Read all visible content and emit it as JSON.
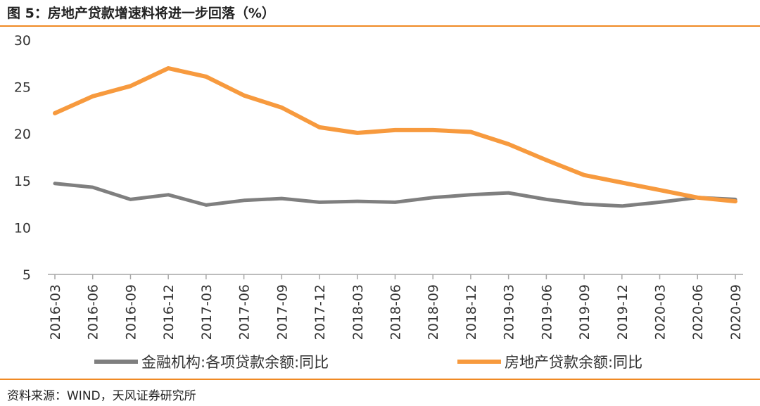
{
  "title": "图 5：房地产贷款增速料将进一步回落（%）",
  "source": "资料来源：WIND，天风证券研究所",
  "chart_data": {
    "type": "line",
    "x": [
      "2016-03",
      "2016-06",
      "2016-09",
      "2016-12",
      "2017-03",
      "2017-06",
      "2017-09",
      "2017-12",
      "2018-03",
      "2018-06",
      "2018-09",
      "2018-12",
      "2019-03",
      "2019-06",
      "2019-09",
      "2019-12",
      "2020-03",
      "2020-06",
      "2020-09"
    ],
    "series": [
      {
        "name": "金融机构:各项贷款余额:同比",
        "color": "#7f7f7f",
        "values": [
          14.7,
          14.3,
          13.0,
          13.5,
          12.4,
          12.9,
          13.1,
          12.7,
          12.8,
          12.7,
          13.2,
          13.5,
          13.7,
          13.0,
          12.5,
          12.3,
          12.7,
          13.2,
          13.0
        ]
      },
      {
        "name": "房地产贷款余额:同比",
        "color": "#f79a3e",
        "values": [
          22.2,
          24.0,
          25.1,
          27.0,
          26.1,
          24.1,
          22.8,
          20.7,
          20.1,
          20.4,
          20.4,
          20.2,
          18.9,
          17.2,
          15.6,
          14.8,
          14.0,
          13.2,
          12.8
        ]
      }
    ],
    "yticks": [
      "30",
      "25",
      "20",
      "15",
      "10",
      "5"
    ],
    "ylim": [
      5,
      30
    ],
    "grid": false,
    "legend": "bottom"
  }
}
